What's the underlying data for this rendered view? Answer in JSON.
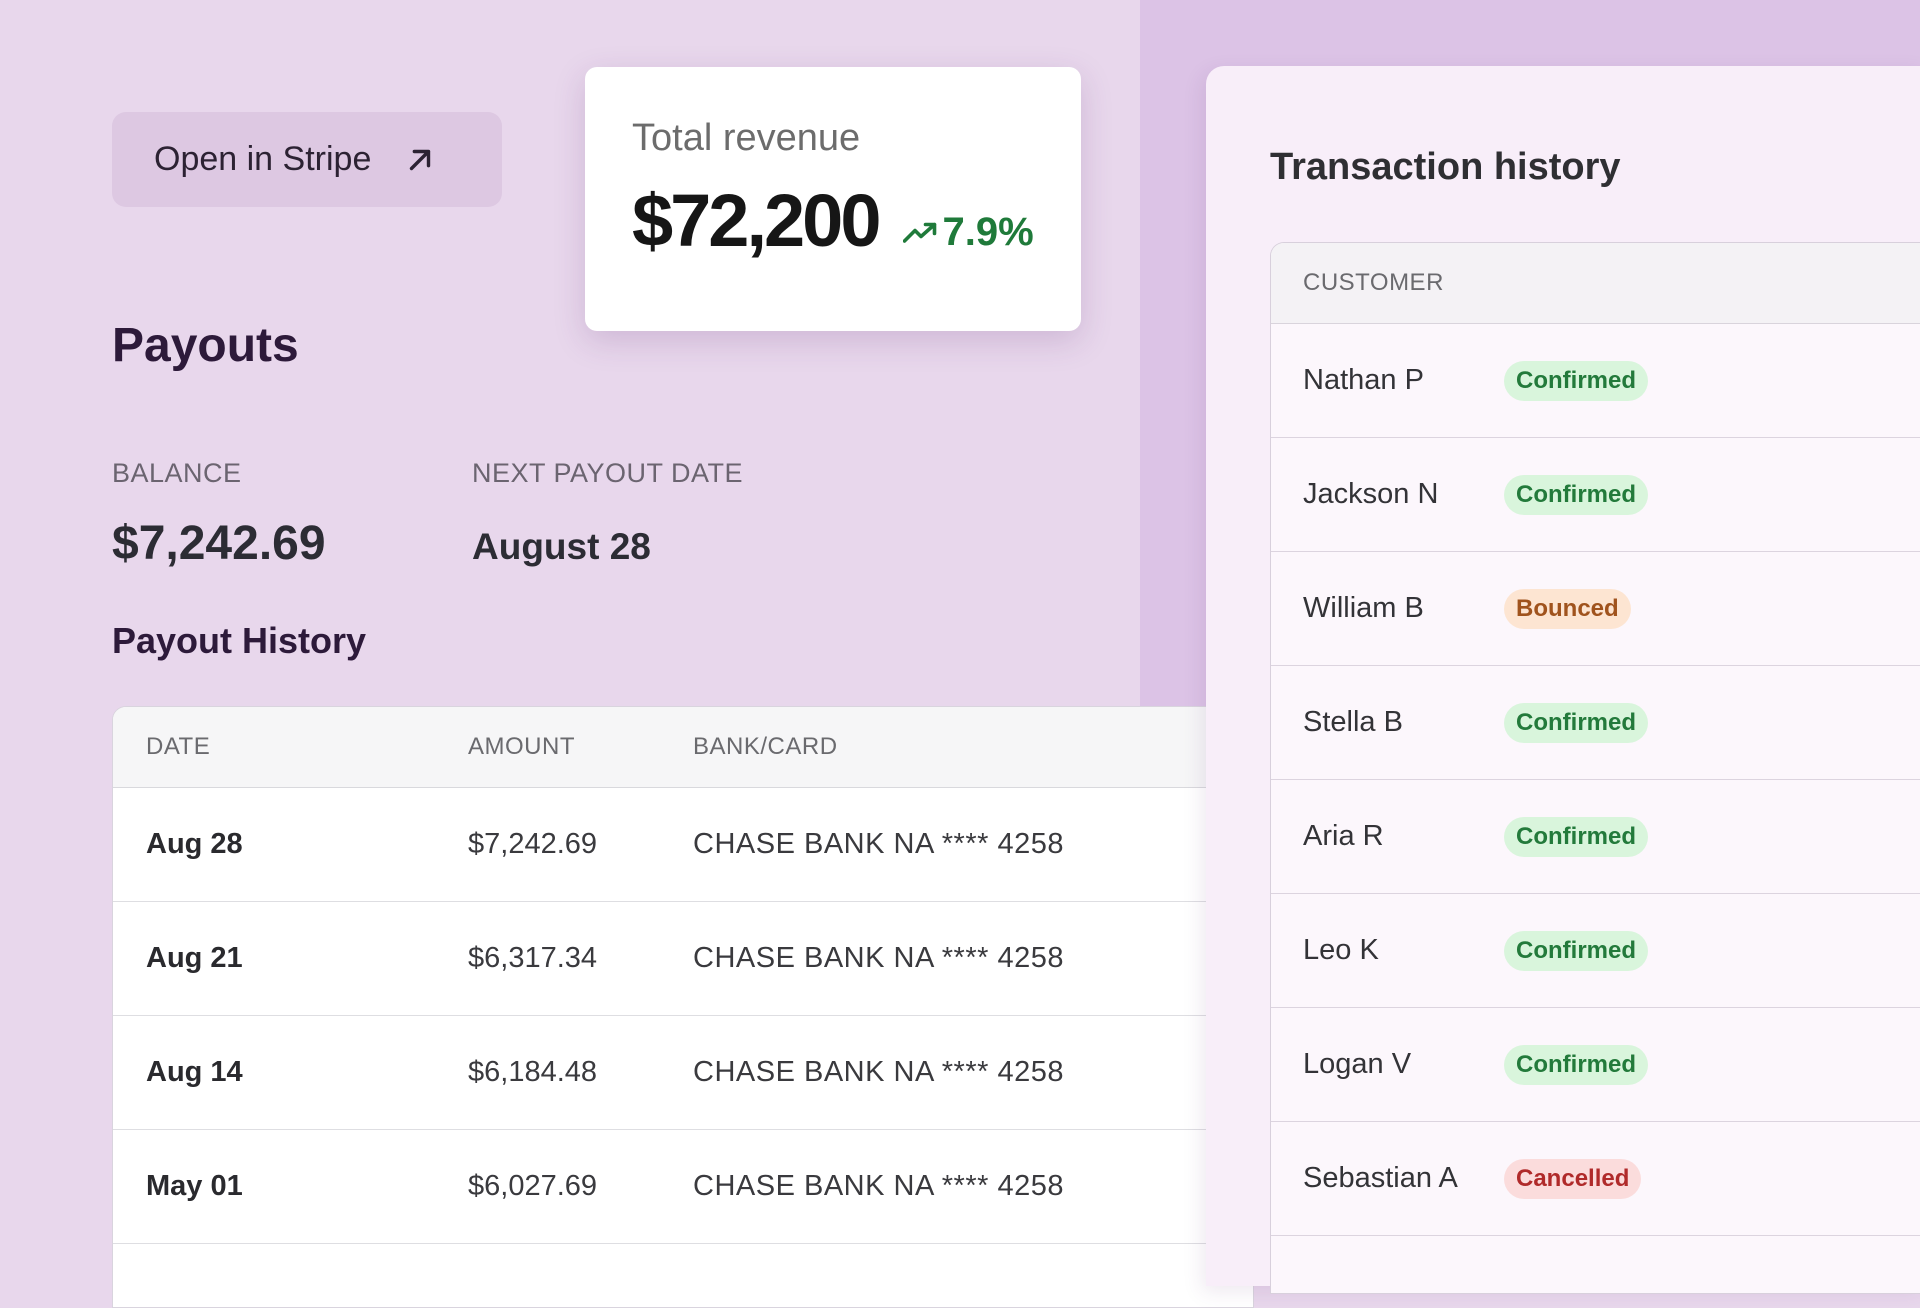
{
  "stripe_button": {
    "label": "Open in Stripe",
    "icon": "arrow-up-right-icon"
  },
  "revenue": {
    "label": "Total revenue",
    "value": "$72,200",
    "trend": "7.9%",
    "trend_icon": "trending-up-icon",
    "trend_color": "#1f7a3a"
  },
  "payouts": {
    "title": "Payouts",
    "balance_label": "BALANCE",
    "balance_value": "$7,242.69",
    "next_payout_label": "NEXT PAYOUT DATE",
    "next_payout_value": "August 28",
    "history_title": "Payout History",
    "columns": [
      "DATE",
      "AMOUNT",
      "BANK/CARD"
    ],
    "rows": [
      {
        "date": "Aug 28",
        "amount": "$7,242.69",
        "bank": "CHASE BANK NA **** 4258"
      },
      {
        "date": "Aug 21",
        "amount": "$6,317.34",
        "bank": "CHASE BANK NA **** 4258"
      },
      {
        "date": "Aug 14",
        "amount": "$6,184.48",
        "bank": "CHASE BANK NA **** 4258"
      },
      {
        "date": "May 01",
        "amount": "$6,027.69",
        "bank": "CHASE BANK NA **** 4258"
      }
    ]
  },
  "transactions": {
    "title": "Transaction history",
    "column": "CUSTOMER",
    "rows": [
      {
        "name": "Nathan P",
        "status": "Confirmed"
      },
      {
        "name": "Jackson N",
        "status": "Confirmed"
      },
      {
        "name": "William B",
        "status": "Bounced"
      },
      {
        "name": "Stella B",
        "status": "Confirmed"
      },
      {
        "name": "Aria R",
        "status": "Confirmed"
      },
      {
        "name": "Leo K",
        "status": "Confirmed"
      },
      {
        "name": "Logan V",
        "status": "Confirmed"
      },
      {
        "name": "Sebastian A",
        "status": "Cancelled"
      }
    ]
  },
  "colors": {
    "background": "#e8d7ec",
    "accent_purple": "#dcc3e6",
    "confirmed": "#237a3b",
    "bounced": "#a0531d",
    "cancelled": "#b02a2a"
  }
}
